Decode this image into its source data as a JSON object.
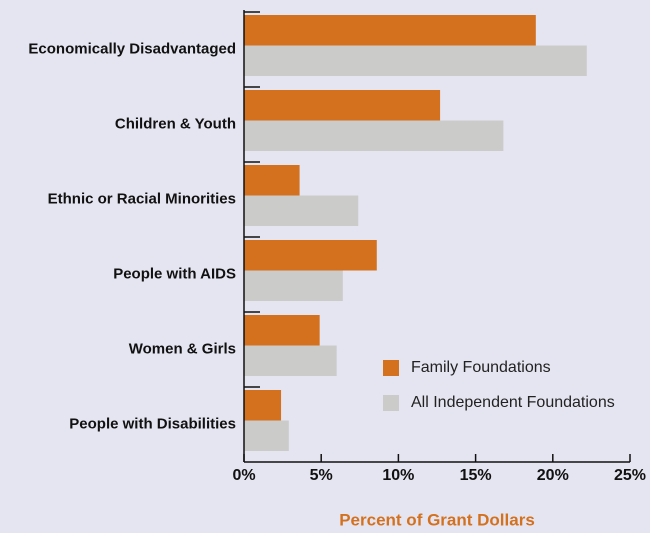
{
  "chart_data": {
    "type": "hbar",
    "categories": [
      "Economically Disadvantaged",
      "Children & Youth",
      "Ethnic or Racial Minorities",
      "People with AIDS",
      "Women & Girls",
      "People with Disabilities"
    ],
    "series": [
      {
        "name": "Family Foundations",
        "color": "#d4711f",
        "values": [
          18.9,
          12.7,
          3.6,
          8.6,
          4.9,
          2.4
        ]
      },
      {
        "name": "All Independent Foundations",
        "color": "#cbcbc9",
        "values": [
          22.2,
          16.8,
          7.4,
          6.4,
          6.0,
          2.9
        ]
      }
    ],
    "xlabel": "Percent of Grant Dollars",
    "xlim": [
      0,
      25
    ],
    "xticks": [
      {
        "value": 0,
        "label": "0%"
      },
      {
        "value": 5,
        "label": "5%"
      },
      {
        "value": 10,
        "label": "10%"
      },
      {
        "value": 15,
        "label": "15%"
      },
      {
        "value": 20,
        "label": "20%"
      },
      {
        "value": 25,
        "label": "25%"
      }
    ],
    "legend": "lower right"
  }
}
